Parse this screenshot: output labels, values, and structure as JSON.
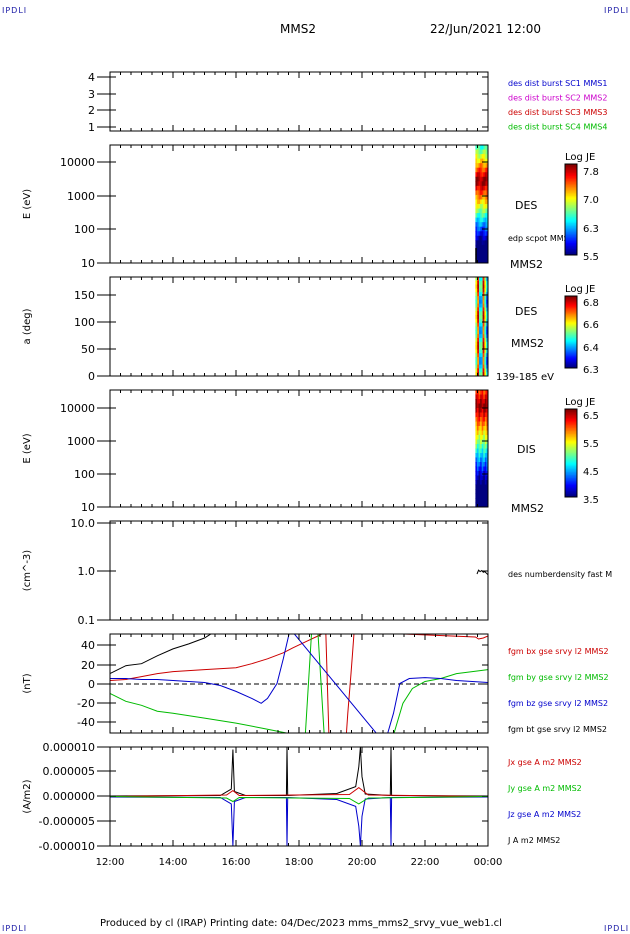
{
  "corner_label": "IPDLI",
  "header": {
    "title": "MMS2",
    "datetime": "22/Jun/2021 12:00"
  },
  "footer": {
    "text": "Produced by cl (IRAP)   Printing date: 04/Dec/2023   mms_mms2_srvy_vue_web1.cl"
  },
  "time_axis": {
    "ticks": [
      "12:00",
      "14:00",
      "16:00",
      "18:00",
      "20:00",
      "22:00",
      "00:00"
    ]
  },
  "chart_data": [
    {
      "type": "line",
      "panel": "burst",
      "ylabel": "",
      "yticks": [
        "4",
        "3",
        "2",
        "1"
      ],
      "ylim": [
        0.6,
        4.4
      ],
      "legend": [
        {
          "label": "des dist burst SC1 MMS1",
          "color": "#0000cc"
        },
        {
          "label": "des dist burst SC2 MMS2",
          "color": "#cc00cc"
        },
        {
          "label": "des dist burst SC3 MMS3",
          "color": "#cc0000"
        },
        {
          "label": "des dist burst SC4 MMS4",
          "color": "#00bb00"
        }
      ]
    },
    {
      "type": "heatmap",
      "panel": "des_energy",
      "ylabel": "E (eV)",
      "yticks": [
        "10000",
        "1000",
        "100",
        "10"
      ],
      "scale": "log",
      "ylim": [
        10,
        30000
      ],
      "right_labels": [
        "DES",
        "edp scpot MMS2",
        "MMS2"
      ],
      "colorbar": {
        "title": "Log JE",
        "ticks": [
          "7.8",
          "7.0",
          "6.3",
          "5.5"
        ],
        "range": [
          5.5,
          7.8
        ]
      }
    },
    {
      "type": "heatmap",
      "panel": "des_pitch",
      "ylabel": "a (deg)",
      "yticks": [
        "150",
        "100",
        "50",
        "0"
      ],
      "ylim": [
        0,
        180
      ],
      "right_labels": [
        "DES",
        "MMS2",
        "139-185 eV"
      ],
      "colorbar": {
        "title": "Log JE",
        "ticks": [
          "6.8",
          "6.6",
          "6.4",
          "6.3"
        ],
        "range": [
          6.3,
          6.85
        ]
      }
    },
    {
      "type": "heatmap",
      "panel": "dis_energy",
      "ylabel": "E (eV)",
      "yticks": [
        "10000",
        "1000",
        "100",
        "10"
      ],
      "scale": "log",
      "ylim": [
        10,
        30000
      ],
      "right_labels": [
        "DIS",
        "MMS2"
      ],
      "colorbar": {
        "title": "Log JE",
        "ticks": [
          "6.5",
          "5.5",
          "4.5",
          "3.5"
        ],
        "range": [
          3.5,
          6.6
        ]
      }
    },
    {
      "type": "line",
      "panel": "density",
      "ylabel": "(cm^-3)",
      "yticks": [
        "10.0",
        "1.0",
        "0.1"
      ],
      "scale": "log",
      "ylim": [
        0.1,
        10
      ],
      "legend": [
        {
          "label": "des numberdensity fast M",
          "color": "#000000"
        }
      ],
      "series": [
        {
          "name": "des numberdensity fast M",
          "color": "#000000",
          "x": [
            23.65,
            23.7,
            23.75,
            23.8,
            23.85,
            23.9,
            23.95,
            24.0
          ],
          "y": [
            0.85,
            1.02,
            0.95,
            1.0,
            0.92,
            0.95,
            0.88,
            0.82
          ]
        }
      ]
    },
    {
      "type": "line",
      "panel": "fgm",
      "ylabel": "(nT)",
      "yticks": [
        "40",
        "20",
        "0",
        "-20",
        "-40"
      ],
      "ylim": [
        -50,
        50
      ],
      "legend": [
        {
          "label": "fgm bx gse srvy l2 MMS2",
          "color": "#cc0000"
        },
        {
          "label": "fgm by gse srvy l2 MMS2",
          "color": "#00bb00"
        },
        {
          "label": "fgm bz gse srvy l2 MMS2",
          "color": "#0000cc"
        },
        {
          "label": "fgm bt gse srvy l2 MMS2",
          "color": "#000000"
        }
      ],
      "series": [
        {
          "name": "fgm bt gse srvy l2 MMS2",
          "color": "#000000",
          "x": [
            12.0,
            12.5,
            13.0,
            13.5,
            14.0,
            14.5,
            15.0,
            15.3
          ],
          "y": [
            10,
            18,
            20,
            28,
            35,
            40,
            46,
            52
          ]
        },
        {
          "name": "fgm bx gse srvy l2 MMS2",
          "color": "#cc0000",
          "x": [
            12.0,
            12.5,
            13.0,
            13.5,
            14.0,
            15.0,
            16.0,
            16.5,
            17.0,
            17.5,
            17.8,
            18.2,
            18.6,
            18.85,
            18.95,
            19.0,
            19.3,
            19.5,
            19.55,
            19.6,
            19.65,
            19.7,
            19.75,
            19.8,
            23.6,
            23.7,
            23.85,
            24.0
          ],
          "y": [
            3,
            4,
            7,
            10,
            12,
            14,
            16,
            20,
            25,
            31,
            36,
            42,
            48,
            52,
            -52,
            -52,
            -52,
            -52,
            -30,
            -10,
            10,
            30,
            52,
            52,
            47,
            45,
            46,
            48
          ]
        },
        {
          "name": "fgm by gse srvy l2 MMS2",
          "color": "#00bb00",
          "x": [
            12.0,
            12.5,
            13.0,
            13.5,
            14.0,
            15.0,
            16.0,
            16.8,
            17.6,
            18.2,
            18.4,
            18.6,
            18.8,
            18.9,
            21.0,
            21.3,
            21.6,
            22.0,
            22.5,
            23.0,
            23.5,
            24.0
          ],
          "y": [
            -10,
            -18,
            -22,
            -28,
            -30,
            -35,
            -40,
            -45,
            -50,
            -52,
            52,
            52,
            -52,
            -52,
            -52,
            -20,
            -5,
            2,
            5,
            10,
            12,
            14
          ]
        },
        {
          "name": "fgm bz gse srvy l2 MMS2",
          "color": "#0000cc",
          "x": [
            12.0,
            12.5,
            13.0,
            13.5,
            14.0,
            14.5,
            15.0,
            15.5,
            16.0,
            16.5,
            16.8,
            17.0,
            17.3,
            17.5,
            17.7,
            17.8,
            20.5,
            20.8,
            21.0,
            21.2,
            21.5,
            22.0,
            22.5,
            23.0,
            23.5,
            24.0
          ],
          "y": [
            5,
            5,
            4,
            4,
            3,
            2,
            1,
            -2,
            -8,
            -15,
            -20,
            -15,
            0,
            25,
            52,
            52,
            -52,
            -52,
            -30,
            0,
            5,
            6,
            5,
            3,
            2,
            1
          ]
        }
      ]
    },
    {
      "type": "line",
      "panel": "current",
      "ylabel": "(A/m2)",
      "yticks": [
        "0.000010",
        "0.000005",
        "0.000000",
        "-0.000005",
        "-0.000010"
      ],
      "ylim": [
        -1e-05,
        1e-05
      ],
      "legend": [
        {
          "label": "Jx gse A m2 MMS2",
          "color": "#cc0000"
        },
        {
          "label": "Jy gse A m2 MMS2",
          "color": "#00bb00"
        },
        {
          "label": "Jz gse A m2 MMS2",
          "color": "#0000cc"
        },
        {
          "label": "J A m2 MMS2",
          "color": "#000000"
        }
      ],
      "series": [
        {
          "name": "J A m2 MMS2",
          "color": "#000000",
          "x": [
            12.0,
            15.5,
            15.85,
            15.9,
            15.95,
            16.3,
            17.6,
            17.62,
            17.64,
            19.2,
            19.8,
            19.9,
            19.95,
            20.0,
            20.1,
            20.9,
            20.92,
            20.94,
            24.0
          ],
          "y": [
            1e-07,
            2e-07,
            1.5e-06,
            9.5e-06,
            1e-06,
            2e-07,
            2e-07,
            1e-05,
            2e-07,
            6e-07,
            2e-06,
            6e-06,
            1e-05,
            4e-06,
            5e-07,
            2e-07,
            1e-05,
            2e-07,
            1e-07
          ]
        },
        {
          "name": "Jz gse A m2 MMS2",
          "color": "#0000cc",
          "x": [
            12.0,
            15.5,
            15.85,
            15.9,
            15.95,
            16.3,
            17.6,
            17.62,
            17.64,
            19.2,
            19.8,
            19.9,
            19.95,
            20.0,
            20.1,
            20.9,
            20.92,
            20.94,
            24.0
          ],
          "y": [
            -1e-07,
            -2e-07,
            -1.5e-06,
            -1e-05,
            -1e-06,
            -2e-07,
            -2e-07,
            -1e-05,
            -2e-07,
            -6e-07,
            -2e-06,
            -6e-06,
            -1e-05,
            -4e-06,
            -5e-07,
            -2e-07,
            -1e-05,
            -2e-07,
            -1e-07
          ]
        },
        {
          "name": "Jx gse A m2 MMS2",
          "color": "#cc0000",
          "x": [
            12.0,
            15.7,
            15.9,
            16.1,
            19.6,
            19.9,
            20.2,
            24.0
          ],
          "y": [
            0.0,
            3e-07,
            1.2e-06,
            2e-07,
            4e-07,
            1.8e-06,
            3e-07,
            0.0
          ]
        },
        {
          "name": "Jy gse A m2 MMS2",
          "color": "#00bb00",
          "x": [
            12.0,
            15.7,
            15.9,
            16.1,
            19.6,
            19.9,
            20.2,
            24.0
          ],
          "y": [
            0.0,
            -3e-07,
            -1e-06,
            -2e-07,
            -4e-07,
            -1.5e-06,
            -3e-07,
            0.0
          ]
        }
      ]
    }
  ]
}
